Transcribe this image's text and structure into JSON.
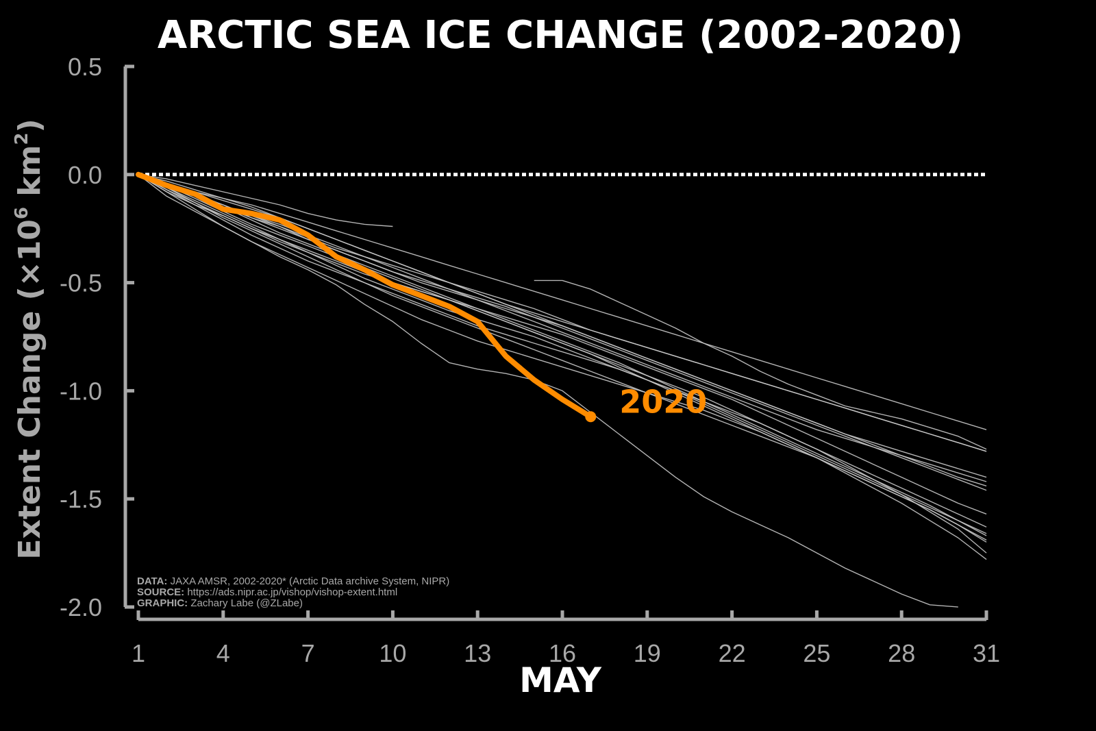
{
  "chart_data": {
    "type": "line",
    "title": "ARCTIC SEA ICE CHANGE (2002-2020)",
    "xlabel": "MAY",
    "ylabel": {
      "prefix": "Extent Change (×10",
      "exp1": "6",
      "mid": " km",
      "exp2": "2",
      "suffix": ")"
    },
    "xlim": [
      1,
      31
    ],
    "ylim": [
      -2.0,
      0.5
    ],
    "xticks": [
      1,
      4,
      7,
      10,
      13,
      16,
      19,
      22,
      25,
      28,
      31
    ],
    "yticks": [
      0.5,
      0.0,
      -0.5,
      -1.0,
      -1.5,
      -2.0
    ],
    "ytick_labels": [
      "0.5",
      "0.0",
      "-0.5",
      "-1.0",
      "-1.5",
      "-2.0"
    ],
    "reference_line": {
      "y": 0.0,
      "style": "dotted",
      "color": "#ffffff"
    },
    "colors": {
      "background": "#000000",
      "axis": "#a8a8a8",
      "history": "#c8c8c8",
      "highlight": "#ff8c00",
      "title": "#ffffff"
    },
    "series_history": [
      {
        "name": "h01",
        "start_day": 1,
        "values": [
          0,
          -0.06,
          -0.1,
          -0.14,
          -0.2,
          -0.24,
          -0.29,
          -0.34,
          -0.38,
          -0.42,
          -0.46,
          -0.5,
          -0.54,
          -0.58,
          -0.62,
          -0.67,
          -0.72,
          -0.76,
          -0.8,
          -0.84,
          -0.88,
          -0.92,
          -0.96,
          -1.0,
          -1.04,
          -1.08,
          -1.12,
          -1.16,
          -1.2,
          -1.24,
          -1.28
        ]
      },
      {
        "name": "h02",
        "start_day": 1,
        "values": [
          0,
          -0.05,
          -0.09,
          -0.14,
          -0.19,
          -0.24,
          -0.3,
          -0.35,
          -0.4,
          -0.45,
          -0.49,
          -0.53,
          -0.57,
          -0.61,
          -0.66,
          -0.71,
          -0.76,
          -0.81,
          -0.86,
          -0.91,
          -0.96,
          -1.01,
          -1.06,
          -1.11,
          -1.16,
          -1.21,
          -1.26,
          -1.31,
          -1.36,
          -1.41,
          -1.46
        ]
      },
      {
        "name": "h03",
        "start_day": 1,
        "values": [
          0,
          -0.04,
          -0.08,
          -0.12,
          -0.16,
          -0.2,
          -0.25,
          -0.3,
          -0.35,
          -0.4,
          -0.45,
          -0.5,
          -0.55,
          -0.6,
          -0.65,
          -0.7,
          -0.75,
          -0.8,
          -0.85,
          -0.9,
          -0.95,
          -1.0,
          -1.05,
          -1.1,
          -1.15,
          -1.2,
          -1.25,
          -1.3,
          -1.35,
          -1.4,
          -1.44
        ]
      },
      {
        "name": "h04",
        "start_day": 1,
        "values": [
          0,
          -0.07,
          -0.13,
          -0.19,
          -0.25,
          -0.31,
          -0.36,
          -0.41,
          -0.46,
          -0.5,
          -0.54,
          -0.58,
          -0.62,
          -0.66,
          -0.7,
          -0.74,
          -0.79,
          -0.84,
          -0.89,
          -0.94,
          -0.99,
          -1.04,
          -1.1,
          -1.16,
          -1.22,
          -1.28,
          -1.34,
          -1.4,
          -1.46,
          -1.52,
          -1.57
        ]
      },
      {
        "name": "h05",
        "start_day": 1,
        "values": [
          0,
          -0.05,
          -0.11,
          -0.17,
          -0.23,
          -0.28,
          -0.33,
          -0.38,
          -0.43,
          -0.48,
          -0.53,
          -0.58,
          -0.63,
          -0.68,
          -0.73,
          -0.78,
          -0.83,
          -0.88,
          -0.93,
          -0.98,
          -1.03,
          -1.09,
          -1.15,
          -1.21,
          -1.27,
          -1.33,
          -1.39,
          -1.45,
          -1.51,
          -1.57,
          -1.63
        ]
      },
      {
        "name": "h06",
        "start_day": 1,
        "values": [
          0,
          -0.06,
          -0.12,
          -0.18,
          -0.24,
          -0.3,
          -0.36,
          -0.42,
          -0.48,
          -0.53,
          -0.58,
          -0.63,
          -0.67,
          -0.71,
          -0.75,
          -0.8,
          -0.85,
          -0.9,
          -0.95,
          -1.0,
          -1.06,
          -1.12,
          -1.18,
          -1.24,
          -1.3,
          -1.36,
          -1.42,
          -1.48,
          -1.54,
          -1.6,
          -1.66
        ]
      },
      {
        "name": "h07",
        "start_day": 1,
        "values": [
          0,
          -0.08,
          -0.14,
          -0.19,
          -0.25,
          -0.3,
          -0.35,
          -0.4,
          -0.45,
          -0.5,
          -0.54,
          -0.58,
          -0.63,
          -0.68,
          -0.73,
          -0.78,
          -0.83,
          -0.89,
          -0.95,
          -1.01,
          -1.07,
          -1.13,
          -1.19,
          -1.25,
          -1.31,
          -1.37,
          -1.43,
          -1.49,
          -1.55,
          -1.62,
          -1.69
        ]
      },
      {
        "name": "h08",
        "start_day": 1,
        "values": [
          0,
          -0.04,
          -0.09,
          -0.15,
          -0.21,
          -0.27,
          -0.32,
          -0.37,
          -0.42,
          -0.47,
          -0.52,
          -0.57,
          -0.62,
          -0.67,
          -0.72,
          -0.77,
          -0.82,
          -0.87,
          -0.93,
          -0.99,
          -1.05,
          -1.11,
          -1.17,
          -1.23,
          -1.29,
          -1.35,
          -1.41,
          -1.47,
          -1.53,
          -1.6,
          -1.67
        ]
      },
      {
        "name": "h09",
        "start_day": 1,
        "values": [
          0,
          -0.05,
          -0.1,
          -0.15,
          -0.2,
          -0.25,
          -0.3,
          -0.35,
          -0.4,
          -0.45,
          -0.5,
          -0.54,
          -0.58,
          -0.62,
          -0.66,
          -0.7,
          -0.75,
          -0.8,
          -0.85,
          -0.9,
          -0.95,
          -1.0,
          -1.05,
          -1.1,
          -1.15,
          -1.2,
          -1.24,
          -1.28,
          -1.32,
          -1.36,
          -1.4
        ]
      },
      {
        "name": "h10",
        "start_day": 1,
        "values": [
          0,
          -0.03,
          -0.07,
          -0.11,
          -0.15,
          -0.2,
          -0.25,
          -0.3,
          -0.35,
          -0.4,
          -0.45,
          -0.5,
          -0.55,
          -0.6,
          -0.64,
          -0.68,
          -0.72,
          -0.76,
          -0.8,
          -0.84,
          -0.88,
          -0.92,
          -0.96,
          -1.0,
          -1.04,
          -1.08,
          -1.12,
          -1.16,
          -1.2,
          -1.24,
          -1.28
        ]
      },
      {
        "name": "h11",
        "start_day": 1,
        "values": [
          0,
          -0.06,
          -0.13,
          -0.2,
          -0.26,
          -0.32,
          -0.38,
          -0.44,
          -0.5,
          -0.56,
          -0.61,
          -0.66,
          -0.71,
          -0.76,
          -0.81,
          -0.86,
          -0.91,
          -0.96,
          -1.01,
          -1.06,
          -1.11,
          -1.16,
          -1.21,
          -1.26,
          -1.31,
          -1.37,
          -1.43,
          -1.49,
          -1.55,
          -1.62,
          -1.7
        ]
      },
      {
        "name": "h12",
        "start_day": 1,
        "values": [
          0,
          -0.07,
          -0.14,
          -0.21,
          -0.28,
          -0.34,
          -0.4,
          -0.45,
          -0.5,
          -0.55,
          -0.6,
          -0.65,
          -0.7,
          -0.74,
          -0.78,
          -0.82,
          -0.86,
          -0.9,
          -0.95,
          -1.0,
          -1.05,
          -1.1,
          -1.15,
          -1.21,
          -1.27,
          -1.34,
          -1.41,
          -1.48,
          -1.56,
          -1.64,
          -1.75
        ]
      },
      {
        "name": "h13",
        "start_day": 1,
        "values": [
          0,
          -0.1,
          -0.17,
          -0.24,
          -0.31,
          -0.37,
          -0.43,
          -0.49,
          -0.55,
          -0.61,
          -0.67,
          -0.72,
          -0.77,
          -0.81,
          -0.85,
          -0.89,
          -0.93,
          -0.97,
          -1.01,
          -1.05,
          -1.09,
          -1.14,
          -1.19,
          -1.25,
          -1.31,
          -1.38,
          -1.45,
          -1.52,
          -1.6,
          -1.68,
          -1.78
        ]
      },
      {
        "name": "h14",
        "start_day": 1,
        "values": [
          0,
          -0.05,
          -0.1,
          -0.15,
          -0.19,
          -0.23,
          -0.28,
          -0.33,
          -0.38,
          -0.43,
          -0.48,
          -0.53,
          -0.58,
          -0.63,
          -0.68,
          -0.73,
          -0.78,
          -0.83,
          -0.88,
          -0.93,
          -0.98,
          -1.03,
          -1.08,
          -1.13,
          -1.18,
          -1.22,
          -1.26,
          -1.3,
          -1.34,
          -1.38,
          -1.42
        ]
      },
      {
        "name": "h15",
        "start_day": 1,
        "values": [
          0,
          -0.08,
          -0.16,
          -0.24,
          -0.31,
          -0.38,
          -0.44,
          -0.51,
          -0.6,
          -0.68,
          -0.78,
          -0.87,
          -0.9,
          -0.92,
          -0.95,
          -1.0,
          -1.1,
          -1.2,
          -1.3,
          -1.4,
          -1.49,
          -1.56,
          -1.62,
          -1.68,
          -1.75,
          -1.82,
          -1.88,
          -1.94,
          -1.99,
          -2.0
        ]
      },
      {
        "name": "h16",
        "start_day": 1,
        "values": [
          0,
          -0.02,
          -0.05,
          -0.08,
          -0.11,
          -0.14,
          -0.18,
          -0.21,
          -0.23,
          -0.24
        ]
      },
      {
        "name": "h17",
        "start_day": 1,
        "values": [
          0,
          -0.04,
          -0.08,
          -0.11,
          -0.14,
          -0.18,
          -0.22,
          -0.26,
          -0.3,
          -0.34,
          -0.38,
          -0.42,
          -0.46,
          -0.5,
          -0.54,
          -0.58,
          -0.62,
          -0.66,
          -0.7,
          -0.74,
          -0.78,
          -0.82,
          -0.86,
          -0.9,
          -0.94,
          -0.98,
          -1.02,
          -1.06,
          -1.1,
          -1.14,
          -1.18
        ]
      },
      {
        "name": "h18",
        "start_day": 15,
        "values": [
          -0.49,
          -0.49,
          -0.53,
          -0.59,
          -0.65,
          -0.71,
          -0.78,
          -0.84,
          -0.91,
          -0.97,
          -1.02,
          -1.07,
          -1.1,
          -1.13,
          -1.17,
          -1.21,
          -1.27
        ]
      }
    ],
    "series_highlight": {
      "name": "2020",
      "start_day": 1,
      "values": [
        0,
        -0.05,
        -0.09,
        -0.16,
        -0.18,
        -0.21,
        -0.28,
        -0.38,
        -0.44,
        -0.51,
        -0.56,
        -0.61,
        -0.68,
        -0.84,
        -0.95,
        -1.04,
        -1.12
      ],
      "label": "2020"
    },
    "credits": [
      {
        "key": "DATA:",
        "text": " JAXA AMSR, 2002-2020* (Arctic Data archive System, NIPR)"
      },
      {
        "key": "SOURCE:",
        "text": " https://ads.nipr.ac.jp/vishop/vishop-extent.html"
      },
      {
        "key": "GRAPHIC:",
        "text": " Zachary Labe (@ZLabe)"
      }
    ]
  }
}
